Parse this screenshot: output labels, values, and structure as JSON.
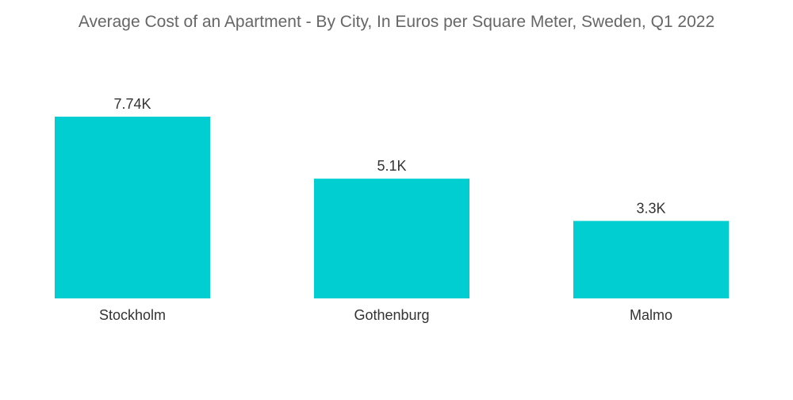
{
  "chart_data": {
    "type": "bar",
    "title": "Average Cost of an Apartment - By City, In Euros per Square Meter, Sweden, Q1 2022",
    "xlabel": "",
    "ylabel": "",
    "categories": [
      "Stockholm",
      "Gothenburg",
      "Malmo"
    ],
    "values": [
      7740,
      5100,
      3300
    ],
    "value_labels": [
      "7.74K",
      "5.1K",
      "3.3K"
    ],
    "ylim": [
      0,
      7740
    ],
    "grid": false,
    "legend": "none",
    "bar_color": "#00CED1"
  }
}
